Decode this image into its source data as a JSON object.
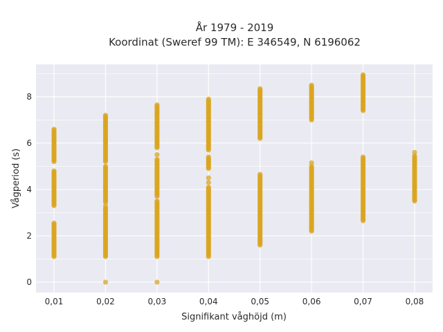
{
  "chart_data": {
    "type": "scatter",
    "title_line1": "År 1979 - 2019",
    "title_line2": "Koordinat (Sweref 99 TM): E 346549, N 6196062",
    "xlabel": "Signifikant våghöjd (m)",
    "ylabel": "Vågperiod (s)",
    "x_categories": [
      "0,01",
      "0,02",
      "0,03",
      "0,04",
      "0,05",
      "0,06",
      "0,07",
      "0,08"
    ],
    "x_values": [
      0.01,
      0.02,
      0.03,
      0.04,
      0.05,
      0.06,
      0.07,
      0.08
    ],
    "xlim": [
      0.0065,
      0.0835
    ],
    "ylim": [
      -0.45,
      9.4
    ],
    "y_ticks": [
      0,
      2,
      4,
      6,
      8
    ],
    "grid": true,
    "background": "#eaeaf2",
    "point_color": "#daa520",
    "series": [
      {
        "name": "",
        "clusters": [
          {
            "x": 0.01,
            "ranges": [
              [
                1.1,
                2.55
              ],
              [
                3.3,
                4.8
              ],
              [
                5.2,
                6.6
              ]
            ]
          },
          {
            "x": 0.02,
            "ranges": [
              [
                1.1,
                3.2
              ],
              [
                3.45,
                5.0
              ],
              [
                5.2,
                7.2
              ]
            ],
            "singles": [
              0.0,
              3.3
            ]
          },
          {
            "x": 0.03,
            "ranges": [
              [
                1.1,
                3.5
              ],
              [
                3.7,
                5.3
              ],
              [
                5.8,
                7.65
              ]
            ],
            "singles": [
              0.0,
              5.5
            ]
          },
          {
            "x": 0.04,
            "ranges": [
              [
                1.1,
                4.1
              ],
              [
                4.9,
                5.4
              ],
              [
                5.7,
                7.9
              ]
            ],
            "singles": [
              4.5,
              4.3
            ]
          },
          {
            "x": 0.05,
            "ranges": [
              [
                1.6,
                4.65
              ],
              [
                6.2,
                8.35
              ]
            ]
          },
          {
            "x": 0.06,
            "ranges": [
              [
                2.2,
                5.0
              ],
              [
                7.0,
                8.5
              ]
            ],
            "singles": [
              5.15
            ]
          },
          {
            "x": 0.07,
            "ranges": [
              [
                2.65,
                5.4
              ],
              [
                7.4,
                8.95
              ]
            ]
          },
          {
            "x": 0.08,
            "ranges": [
              [
                3.5,
                5.45
              ]
            ],
            "singles": [
              5.6
            ]
          }
        ]
      }
    ]
  }
}
